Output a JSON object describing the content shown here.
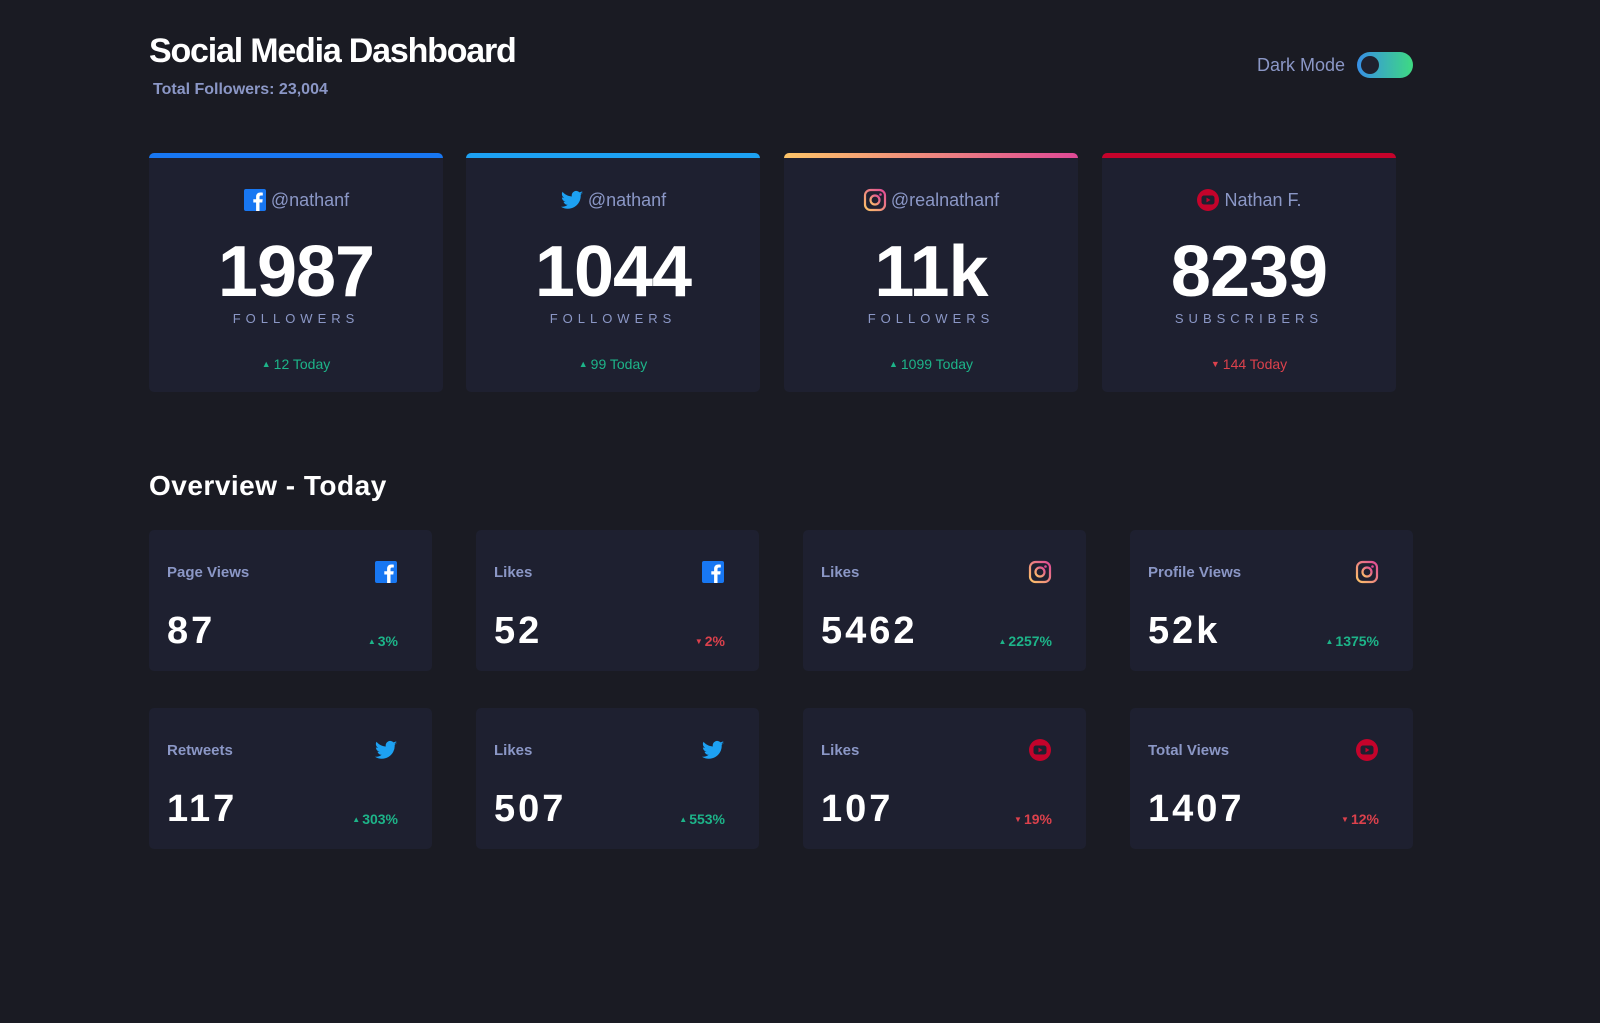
{
  "header": {
    "title": "Social Media Dashboard",
    "total_followers": "Total Followers: 23,004",
    "mode_label": "Dark Mode"
  },
  "colors": {
    "facebook": "#1877f2",
    "twitter": "#1da1f2",
    "youtube": "#c4032b",
    "up": "#1db489",
    "down": "#dc414c"
  },
  "cards": [
    {
      "platform": "facebook",
      "handle": "@nathanf",
      "count": "1987",
      "label": "FOLLOWERS",
      "arrow": "▲",
      "change": "12 Today",
      "direction": "up"
    },
    {
      "platform": "twitter",
      "handle": "@nathanf",
      "count": "1044",
      "label": "FOLLOWERS",
      "arrow": "▲",
      "change": "99 Today",
      "direction": "up"
    },
    {
      "platform": "instagram",
      "handle": "@realnathanf",
      "count": "11k",
      "label": "FOLLOWERS",
      "arrow": "▲",
      "change": "1099 Today",
      "direction": "up"
    },
    {
      "platform": "youtube",
      "handle": "Nathan F.",
      "count": "8239",
      "label": "SUBSCRIBERS",
      "arrow": "▼",
      "change": "144 Today",
      "direction": "down"
    }
  ],
  "overview": {
    "title": "Overview - Today",
    "tiles": [
      {
        "label": "Page Views",
        "platform": "facebook",
        "value": "87",
        "arrow": "▲",
        "pct": "3%",
        "direction": "up"
      },
      {
        "label": "Likes",
        "platform": "facebook",
        "value": "52",
        "arrow": "▼",
        "pct": "2%",
        "direction": "down"
      },
      {
        "label": "Likes",
        "platform": "instagram",
        "value": "5462",
        "arrow": "▲",
        "pct": "2257%",
        "direction": "up"
      },
      {
        "label": "Profile Views",
        "platform": "instagram",
        "value": "52k",
        "arrow": "▲",
        "pct": "1375%",
        "direction": "up"
      },
      {
        "label": "Retweets",
        "platform": "twitter",
        "value": "117",
        "arrow": "▲",
        "pct": "303%",
        "direction": "up"
      },
      {
        "label": "Likes",
        "platform": "twitter",
        "value": "507",
        "arrow": "▲",
        "pct": "553%",
        "direction": "up"
      },
      {
        "label": "Likes",
        "platform": "youtube",
        "value": "107",
        "arrow": "▼",
        "pct": "19%",
        "direction": "down"
      },
      {
        "label": "Total Views",
        "platform": "youtube",
        "value": "1407",
        "arrow": "▼",
        "pct": "12%",
        "direction": "down"
      }
    ]
  }
}
